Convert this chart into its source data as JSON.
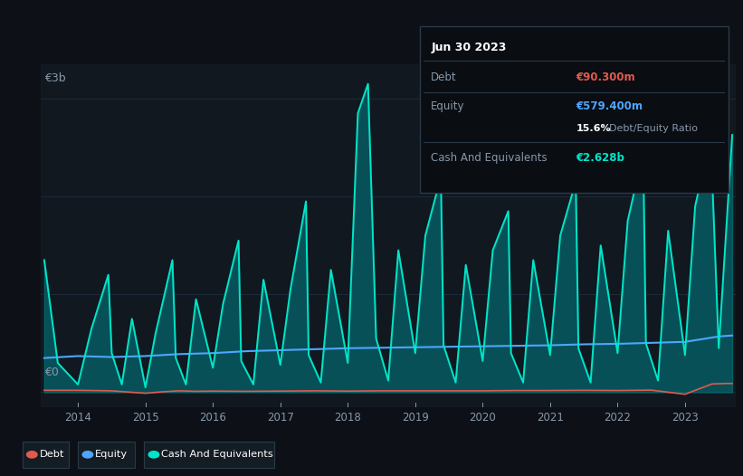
{
  "bg_color": "#0d1117",
  "plot_bg_color": "#111820",
  "grid_color": "#1e2d3d",
  "title_date": "Jun 30 2023",
  "debt_label": "Debt",
  "equity_label": "Equity",
  "cash_label": "Cash And Equivalents",
  "debt_value": "€90.300m",
  "equity_value": "€579.400m",
  "ratio_pct": "15.6%",
  "ratio_text": "Debt/Equity Ratio",
  "cash_value": "€2.628b",
  "debt_color": "#e05a4e",
  "equity_color": "#4da6ff",
  "cash_color": "#00e5c8",
  "cash_fill_alpha": 0.55,
  "ylabel_3b": "€3b",
  "ylabel_0": "€0",
  "ylim_min": -150000000.0,
  "ylim_max": 3350000000.0,
  "xlim_min": 2013.45,
  "xlim_max": 2023.75,
  "cash_x": [
    2013.5,
    2013.7,
    2014.0,
    2014.2,
    2014.45,
    2014.5,
    2014.65,
    2014.8,
    2015.0,
    2015.15,
    2015.4,
    2015.45,
    2015.6,
    2015.75,
    2016.0,
    2016.15,
    2016.38,
    2016.42,
    2016.6,
    2016.75,
    2017.0,
    2017.15,
    2017.38,
    2017.42,
    2017.6,
    2017.75,
    2018.0,
    2018.15,
    2018.3,
    2018.42,
    2018.6,
    2018.75,
    2019.0,
    2019.15,
    2019.38,
    2019.42,
    2019.6,
    2019.75,
    2020.0,
    2020.15,
    2020.38,
    2020.42,
    2020.6,
    2020.75,
    2021.0,
    2021.15,
    2021.38,
    2021.42,
    2021.6,
    2021.75,
    2022.0,
    2022.15,
    2022.38,
    2022.42,
    2022.6,
    2022.75,
    2023.0,
    2023.15,
    2023.38,
    2023.5,
    2023.7
  ],
  "cash_y": [
    1350000000.0,
    300000000.0,
    80000000.0,
    650000000.0,
    1200000000.0,
    400000000.0,
    80000000.0,
    750000000.0,
    50000000.0,
    600000000.0,
    1350000000.0,
    350000000.0,
    80000000.0,
    950000000.0,
    250000000.0,
    900000000.0,
    1550000000.0,
    320000000.0,
    80000000.0,
    1150000000.0,
    280000000.0,
    1050000000.0,
    1950000000.0,
    380000000.0,
    100000000.0,
    1250000000.0,
    300000000.0,
    2850000000.0,
    3150000000.0,
    550000000.0,
    120000000.0,
    1450000000.0,
    400000000.0,
    1600000000.0,
    2200000000.0,
    480000000.0,
    100000000.0,
    1300000000.0,
    320000000.0,
    1450000000.0,
    1850000000.0,
    400000000.0,
    100000000.0,
    1350000000.0,
    380000000.0,
    1600000000.0,
    2150000000.0,
    450000000.0,
    100000000.0,
    1500000000.0,
    400000000.0,
    1750000000.0,
    2450000000.0,
    500000000.0,
    120000000.0,
    1650000000.0,
    380000000.0,
    1900000000.0,
    2600000000.0,
    450000000.0,
    2628000000.0
  ],
  "equity_x": [
    2013.5,
    2014.0,
    2014.5,
    2015.0,
    2015.5,
    2016.0,
    2016.5,
    2017.0,
    2017.5,
    2018.0,
    2018.5,
    2019.0,
    2019.5,
    2020.0,
    2020.5,
    2021.0,
    2021.5,
    2022.0,
    2022.5,
    2023.0,
    2023.5,
    2023.7
  ],
  "equity_y": [
    350000000.0,
    370000000.0,
    360000000.0,
    370000000.0,
    390000000.0,
    400000000.0,
    420000000.0,
    430000000.0,
    440000000.0,
    450000000.0,
    455000000.0,
    460000000.0,
    465000000.0,
    470000000.0,
    475000000.0,
    480000000.0,
    490000000.0,
    495000000.0,
    505000000.0,
    515000000.0,
    570000000.0,
    580000000.0
  ],
  "debt_x": [
    2013.5,
    2014.0,
    2014.5,
    2015.0,
    2015.25,
    2015.5,
    2015.75,
    2016.0,
    2016.5,
    2017.0,
    2017.5,
    2018.0,
    2018.5,
    2019.0,
    2019.5,
    2020.0,
    2020.5,
    2021.0,
    2021.5,
    2022.0,
    2022.5,
    2023.0,
    2023.4,
    2023.6,
    2023.7
  ],
  "debt_y": [
    20000000.0,
    20000000.0,
    15000000.0,
    -10000000.0,
    5000000.0,
    15000000.0,
    10000000.0,
    12000000.0,
    10000000.0,
    12000000.0,
    15000000.0,
    12000000.0,
    15000000.0,
    15000000.0,
    15000000.0,
    15000000.0,
    18000000.0,
    18000000.0,
    20000000.0,
    18000000.0,
    22000000.0,
    -20000000.0,
    85000000.0,
    90000000.0,
    90000000.0
  ]
}
